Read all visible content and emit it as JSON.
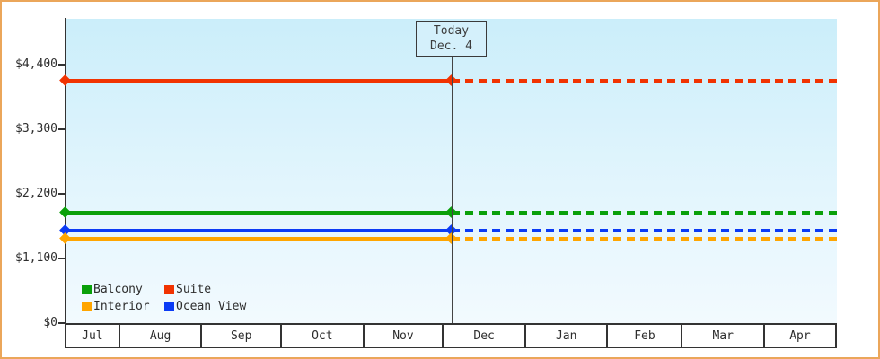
{
  "colors": {
    "frame_border": "#eba65a",
    "axis": "#333333",
    "plot_bg_top": "#cbeefa",
    "plot_bg_bottom": "#f2fafe",
    "today_box_fill": "#d4f0fb",
    "today_line": "#444444",
    "text": "#2e2e2e"
  },
  "chart_data": {
    "type": "line",
    "title": "",
    "description": "Cruise cabin price history: flat price lines, solid before today and dotted (projected) after today",
    "x_axis": {
      "months": [
        "Jul",
        "Aug",
        "Sep",
        "Oct",
        "Nov",
        "Dec",
        "Jan",
        "Feb",
        "Mar",
        "Apr"
      ],
      "month_days": [
        20,
        31,
        30,
        31,
        30,
        31,
        31,
        28,
        31,
        27
      ]
    },
    "y_axis": {
      "range": [
        0,
        4400
      ],
      "ticks": [
        {
          "value": 0,
          "label": "$0"
        },
        {
          "value": 1100,
          "label": "$1,100"
        },
        {
          "value": 2200,
          "label": "$2,200"
        },
        {
          "value": 3300,
          "label": "$3,300"
        },
        {
          "value": 4400,
          "label": "$4,400"
        }
      ]
    },
    "series": [
      {
        "name": "Suite",
        "color": "#f13301",
        "value": 4130,
        "style": "solid-then-dotted"
      },
      {
        "name": "Balcony",
        "color": "#0aa00a",
        "value": 1875,
        "style": "solid-then-dotted"
      },
      {
        "name": "Ocean View",
        "color": "#0b3bf5",
        "value": 1570,
        "style": "solid-then-dotted"
      },
      {
        "name": "Interior",
        "color": "#ffa500",
        "value": 1440,
        "style": "solid-then-dotted"
      }
    ],
    "legend_order": [
      "Balcony",
      "Suite",
      "Interior",
      "Ocean View"
    ],
    "legend_position": "bottom-left-inside-plot",
    "grid": false,
    "annotation": {
      "label_line1": "Today",
      "label_line2": "Dec. 4",
      "x_fraction": 0.5
    }
  }
}
